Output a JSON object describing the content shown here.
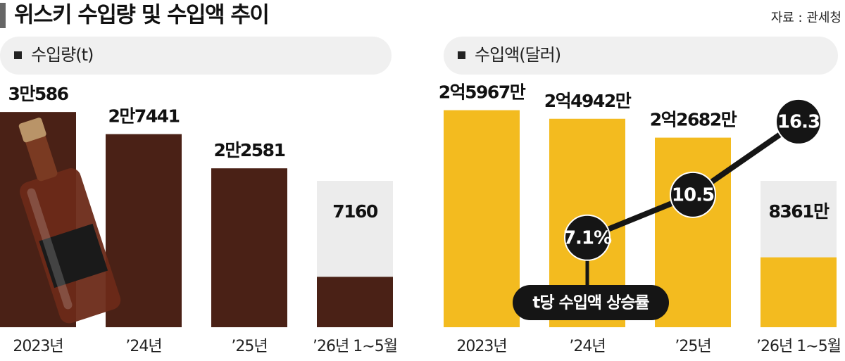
{
  "header": {
    "title": "위스키 수입량 및 수입액 추이",
    "source": "자료 : 관세청"
  },
  "chart_data": [
    {
      "type": "bar",
      "title": "수입량(t)",
      "categories": [
        "2023년",
        "’24년",
        "’25년",
        "’26년 1∼5월"
      ],
      "values": [
        30586,
        27441,
        22581,
        7160
      ],
      "value_labels": [
        "3만586",
        "2만7441",
        "2만2581",
        "7160"
      ],
      "color": "#4a2116",
      "ylim": [
        0,
        31000
      ]
    },
    {
      "type": "bar",
      "title": "수입액(달러)",
      "categories": [
        "2023년",
        "’24년",
        "’25년",
        "’26년 1∼5월"
      ],
      "values": [
        259670000,
        249420000,
        226820000,
        83610000
      ],
      "value_labels": [
        "2억5967만",
        "2억4942만",
        "2억2682만",
        "8361만"
      ],
      "color": "#f3bb1f",
      "ylim": [
        0,
        261000000
      ],
      "series": [
        {
          "name": "t당 수입액 상승률",
          "type": "line",
          "axis": "y2",
          "color": "#151515",
          "values": [
            null,
            7.1,
            10.5,
            16.3
          ],
          "value_labels": [
            null,
            "7.1%",
            "10.5",
            "16.3"
          ]
        }
      ],
      "y2lim": [
        0,
        17.3
      ]
    }
  ]
}
